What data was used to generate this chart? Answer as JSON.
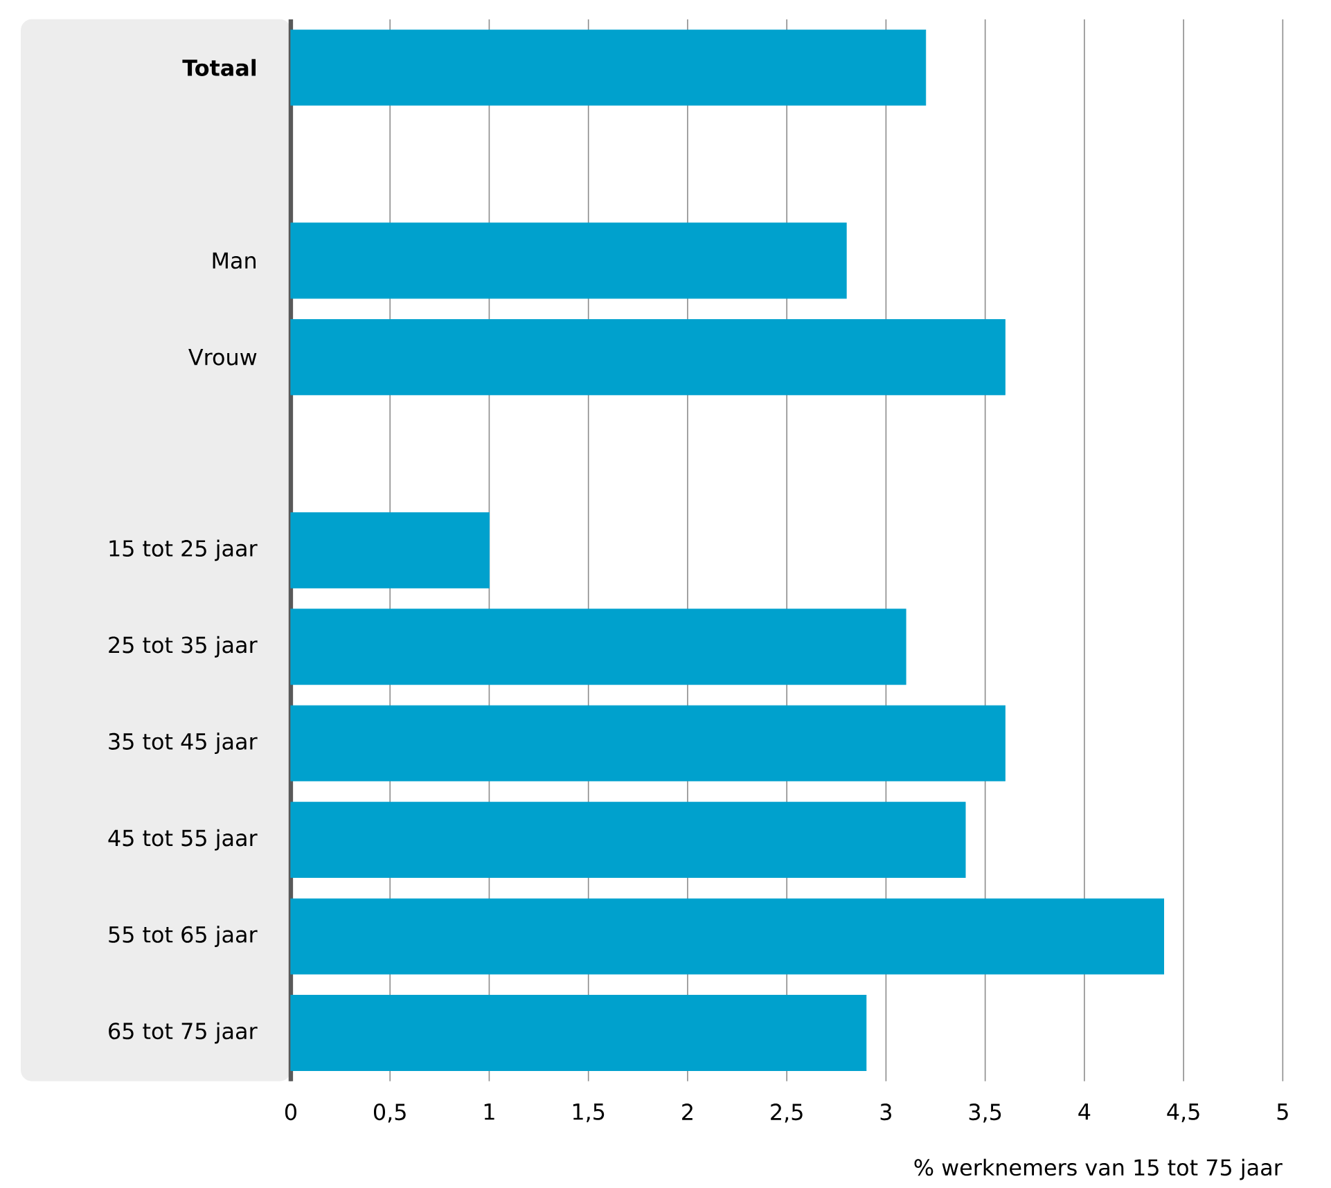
{
  "chart_data": {
    "type": "bar",
    "orientation": "horizontal",
    "xlabel": "% werknemers van 15 tot 75 jaar",
    "categories": [
      "**Totaal**",
      null,
      "Man",
      "Vrouw",
      null,
      "15 tot 25 jaar",
      "25 tot 35 jaar",
      "35 tot 45 jaar",
      "45 tot 55 jaar",
      "55 tot 65 jaar",
      "65 tot 75 jaar"
    ],
    "values": [
      3.2,
      null,
      2.8,
      3.6,
      null,
      1.0,
      3.1,
      3.6,
      3.4,
      4.4,
      2.9
    ],
    "color": "#00a1cd",
    "xlim": [
      0,
      5
    ],
    "xticks": [
      0,
      {
        "value": 0.5,
        "label": "0,5"
      },
      1,
      {
        "value": 1.5,
        "label": "1,5"
      },
      2,
      {
        "value": 2.5,
        "label": "2,5"
      },
      3,
      {
        "value": 3.5,
        "label": "3,5"
      },
      4,
      {
        "value": 4.5,
        "label": "4,5"
      },
      5
    ],
    "grid": "x"
  }
}
